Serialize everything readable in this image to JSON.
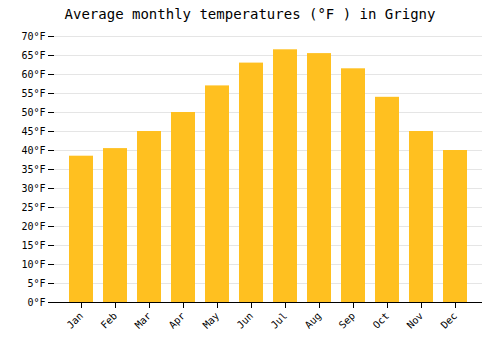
{
  "chart_data": {
    "type": "bar",
    "title": "Average monthly temperatures (°F ) in Grigny",
    "categories": [
      "Jan",
      "Feb",
      "Mar",
      "Apr",
      "May",
      "Jun",
      "Jul",
      "Aug",
      "Sep",
      "Oct",
      "Nov",
      "Dec"
    ],
    "values": [
      38.5,
      40.5,
      45.0,
      50.0,
      57.0,
      63.0,
      66.5,
      65.5,
      61.5,
      54.0,
      45.0,
      40.0
    ],
    "color": "#FFC020",
    "ylim": [
      0,
      70
    ],
    "yticks": [
      {
        "value": 0,
        "label": "0°F"
      },
      {
        "value": 5,
        "label": "5°F"
      },
      {
        "value": 10,
        "label": "10°F"
      },
      {
        "value": 15,
        "label": "15°F"
      },
      {
        "value": 20,
        "label": "20°F"
      },
      {
        "value": 25,
        "label": "25°F"
      },
      {
        "value": 30,
        "label": "30°F"
      },
      {
        "value": 35,
        "label": "35°F"
      },
      {
        "value": 40,
        "label": "40°F"
      },
      {
        "value": 45,
        "label": "45°F"
      },
      {
        "value": 50,
        "label": "50°F"
      },
      {
        "value": 55,
        "label": "55°F"
      },
      {
        "value": 60,
        "label": "60°F"
      },
      {
        "value": 65,
        "label": "65°F"
      },
      {
        "value": 70,
        "label": "70°F"
      }
    ],
    "grid": true
  }
}
